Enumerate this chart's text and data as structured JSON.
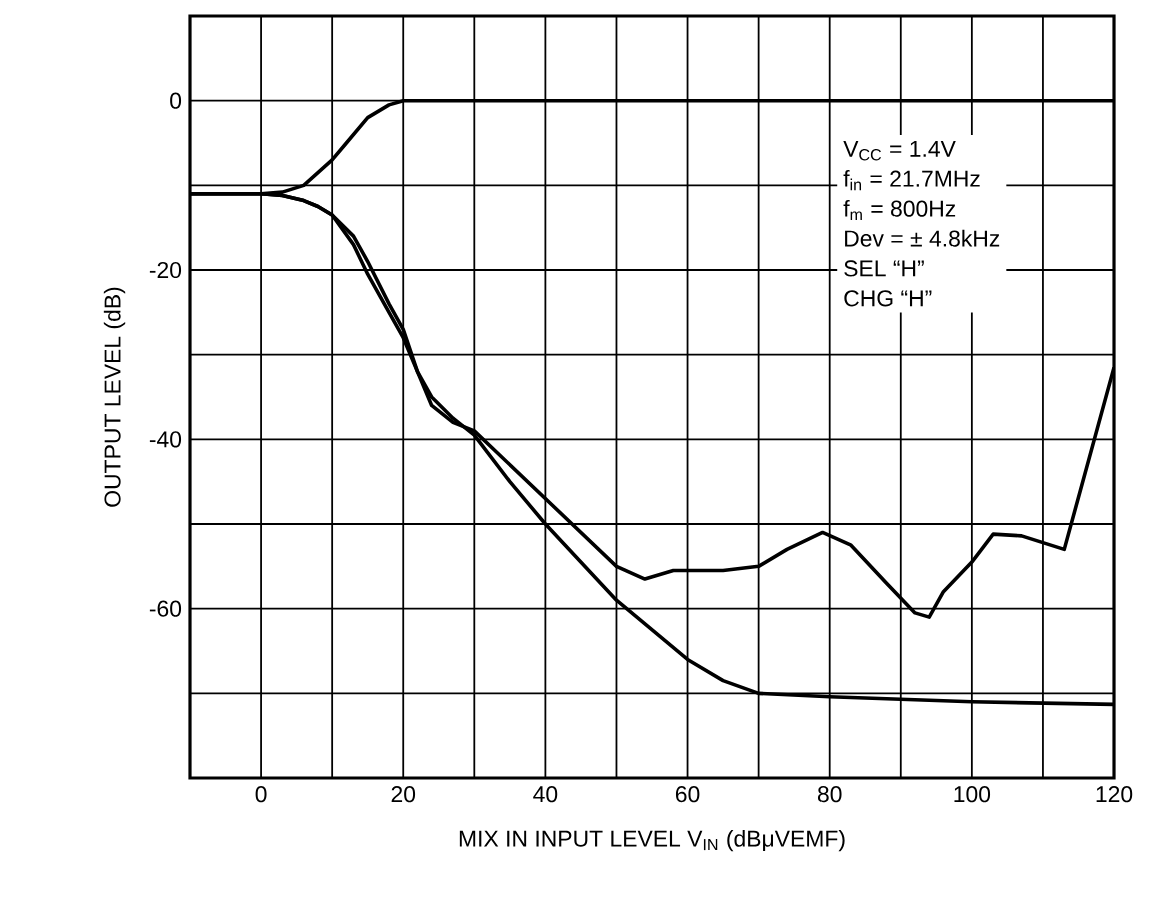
{
  "chart_data": {
    "type": "line",
    "xlabel": "MIX IN INPUT LEVEL   V$_{IN}$   (dBμVEMF)",
    "ylabel": "OUTPUT LEVEL   (dB)",
    "xlim": [
      -10,
      120
    ],
    "ylim": [
      -80,
      10
    ],
    "xticks": [
      {
        "value": -10,
        "label": null
      },
      0,
      {
        "value": 10,
        "label": null
      },
      20,
      {
        "value": 30,
        "label": null
      },
      40,
      {
        "value": 50,
        "label": null
      },
      60,
      {
        "value": 70,
        "label": null
      },
      80,
      {
        "value": 90,
        "label": null
      },
      100,
      {
        "value": 110,
        "label": null
      },
      120
    ],
    "yticks": [
      {
        "value": -80,
        "label": null
      },
      {
        "value": -70,
        "label": null
      },
      -60,
      {
        "value": -50,
        "label": null
      },
      -40,
      {
        "value": -30,
        "label": null
      },
      -20,
      {
        "value": -10,
        "label": null
      },
      0,
      {
        "value": 10,
        "label": null
      }
    ],
    "grid": true,
    "marker": "none",
    "line_style": "solid",
    "series": [
      {
        "color": "#000000",
        "x": [
          -10,
          0,
          3,
          6,
          8,
          10,
          12,
          15,
          18,
          20,
          25,
          30,
          40,
          60,
          80,
          100,
          120
        ],
        "values": [
          -11,
          -11,
          -10.8,
          -10,
          -8.5,
          -7,
          -5,
          -2,
          -0.5,
          0,
          0,
          0,
          0,
          0,
          0,
          0,
          0
        ]
      },
      {
        "color": "#000000",
        "x": [
          -10,
          0,
          3,
          6,
          8,
          10,
          13,
          15,
          18,
          20,
          22,
          24,
          27,
          30,
          35,
          40,
          45,
          50,
          54,
          58,
          62,
          65,
          70,
          74,
          79,
          83,
          88,
          92,
          94,
          96,
          100,
          103,
          107,
          113,
          120
        ],
        "values": [
          -11,
          -11,
          -11.2,
          -11.8,
          -12.5,
          -13.5,
          -16,
          -19,
          -24,
          -27,
          -32,
          -36,
          -38,
          -39,
          -43,
          -47,
          -51,
          -55,
          -56.5,
          -55.5,
          -55.5,
          -55.5,
          -55,
          -53,
          -51,
          -52.5,
          -57,
          -60.5,
          -61,
          -58,
          -54.5,
          -51.2,
          -51.4,
          -53,
          -31.5
        ]
      },
      {
        "color": "#000000",
        "x": [
          -10,
          0,
          3,
          6,
          8,
          10,
          13,
          15,
          18,
          20,
          22,
          24,
          27,
          30,
          35,
          40,
          45,
          50,
          55,
          60,
          65,
          70,
          80,
          100,
          120
        ],
        "values": [
          -11,
          -11,
          -11.2,
          -11.8,
          -12.5,
          -13.5,
          -17,
          -20.5,
          -25,
          -28,
          -32,
          -35,
          -37.5,
          -39.5,
          -45,
          -50,
          -54.5,
          -59,
          -62.5,
          -66,
          -68.5,
          -70,
          -70.4,
          -71,
          -71.3
        ]
      }
    ],
    "annotations": [
      "V$_{CC}$ = 1.4V",
      "f$_{in}$ = 21.7MHz",
      "f$_{m}$ = 800Hz",
      "Dev = ± 4.8kHz",
      "SEL “H”",
      "CHG “H”"
    ]
  }
}
